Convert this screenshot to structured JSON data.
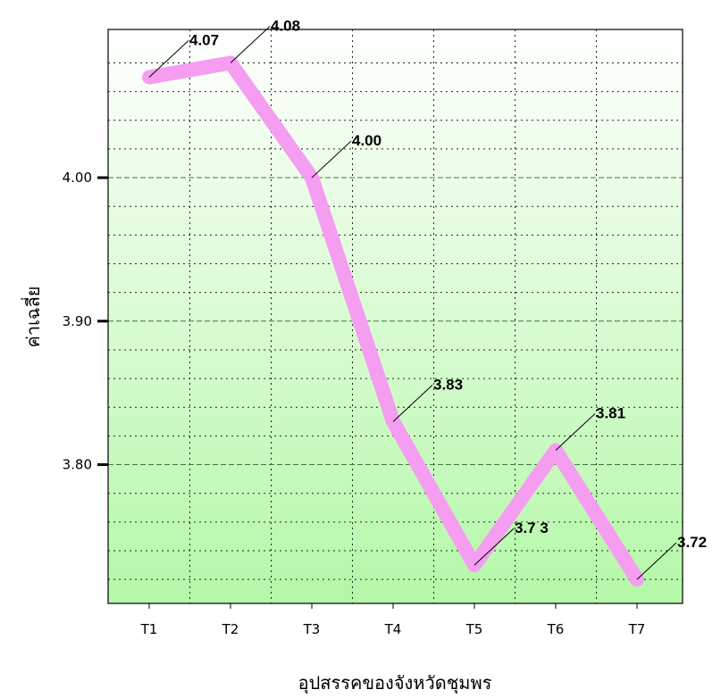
{
  "chart_data": {
    "type": "line",
    "categories": [
      "T1",
      "T2",
      "T3",
      "T4",
      "T5",
      "T6",
      "T7"
    ],
    "values": [
      4.07,
      4.08,
      4.0,
      3.83,
      3.73,
      3.81,
      3.72
    ],
    "data_labels": [
      "4.07",
      "4.08",
      "4.00",
      "3.83",
      "3.7 3",
      "3.81",
      "3.72"
    ],
    "xlabel": "อุปสรรคของจังหวัดชุมพร",
    "ylabel": "ค่าเฉลี่ย",
    "ylim": [
      3.7033,
      4.1033
    ],
    "yticks": [
      3.8,
      3.9,
      4.0
    ],
    "ytick_labels": [
      "3.80",
      "3.90",
      "4.00"
    ],
    "grid": true,
    "colors": {
      "line": "#f59df0",
      "background_top": "#ffffff",
      "background_bottom": "#b4f8a8",
      "major_grid": "#3d7a3d",
      "minor_grid": "#1a2a1a"
    }
  }
}
